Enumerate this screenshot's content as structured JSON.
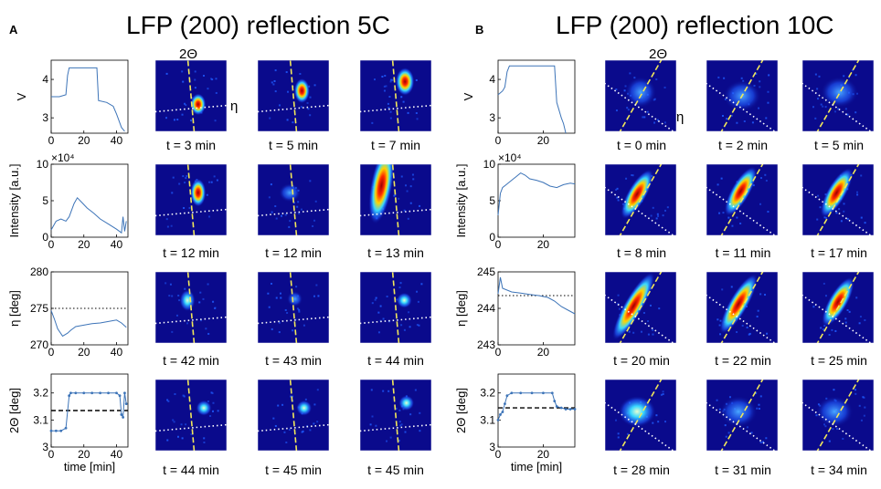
{
  "panels": [
    {
      "label": "A",
      "title": "LFP (200) reflection 5C",
      "top_annotations": {
        "two_theta": "2Θ",
        "eta": "η"
      },
      "captions": [
        [
          "t = 3 min",
          "t = 5 min",
          "t = 7 min"
        ],
        [
          "t = 12 min",
          "t = 12 min",
          "t = 13 min"
        ],
        [
          "t = 42 min",
          "t = 43 min",
          "t = 44 min"
        ],
        [
          "t = 44 min",
          "t = 45 min",
          "t = 45 min"
        ]
      ]
    },
    {
      "label": "B",
      "title": "LFP (200) reflection 10C",
      "top_annotations": {
        "two_theta": "2Θ",
        "eta": "η"
      },
      "captions": [
        [
          "t = 0 min",
          "t = 2 min",
          "t = 5 min"
        ],
        [
          "t = 8 min",
          "t = 11 min",
          "t = 17 min"
        ],
        [
          "t = 20 min",
          "t = 22 min",
          "t = 25 min"
        ],
        [
          "t = 28 min",
          "t = 31 min",
          "t = 34 min"
        ]
      ]
    }
  ],
  "colors": {
    "line": "#3d74b8",
    "heatmap_bg": "#0a0a8c",
    "heatmap_mid": "#3aa0ff",
    "heatmap_hot": "#9b0000",
    "guide_2theta": "#f2e85a",
    "guide_eta": "#ffffff"
  },
  "chart_data": [
    {
      "type": "line",
      "panel": "A",
      "ylabel": "V",
      "xlim": [
        0,
        47
      ],
      "ylim": [
        2.6,
        4.5
      ],
      "yticks": [
        "3",
        "4"
      ],
      "xticks": [
        "0",
        "20",
        "40"
      ],
      "series": [
        {
          "name": "voltage",
          "x": [
            0,
            5,
            9,
            10,
            11,
            28,
            29,
            34,
            38,
            40,
            43,
            45
          ],
          "y": [
            3.55,
            3.55,
            3.6,
            4.1,
            4.3,
            4.3,
            3.45,
            3.4,
            3.3,
            3.1,
            2.75,
            2.65
          ]
        }
      ]
    },
    {
      "type": "line",
      "panel": "A",
      "ylabel": "Intensity [a.u.]",
      "exponent_label": "×10⁴",
      "xlim": [
        0,
        47
      ],
      "ylim": [
        0,
        10
      ],
      "yticks": [
        "0",
        "5",
        "10"
      ],
      "xticks": [
        "0",
        "20",
        "40"
      ],
      "series": [
        {
          "name": "intensity",
          "x": [
            0,
            3,
            6,
            9,
            11,
            14,
            16,
            19,
            22,
            26,
            30,
            35,
            40,
            43,
            44,
            45,
            46
          ],
          "y": [
            1.0,
            2.2,
            2.5,
            2.2,
            2.8,
            4.6,
            5.4,
            4.7,
            4.0,
            3.3,
            2.5,
            1.8,
            1.1,
            0.6,
            2.8,
            0.8,
            2.2
          ]
        }
      ]
    },
    {
      "type": "line",
      "panel": "A",
      "ylabel": "η [deg]",
      "xlim": [
        0,
        47
      ],
      "ylim": [
        270,
        280
      ],
      "yticks": [
        "270",
        "275",
        "280"
      ],
      "xticks": [
        "0",
        "20",
        "40"
      ],
      "reference_line": 275,
      "series": [
        {
          "name": "eta",
          "x": [
            0,
            2,
            4,
            7,
            10,
            12,
            15,
            20,
            25,
            30,
            35,
            40,
            43,
            46
          ],
          "y": [
            274.7,
            273.5,
            272.2,
            271.2,
            271.6,
            272.0,
            272.5,
            272.7,
            272.9,
            273.0,
            273.2,
            273.4,
            273.0,
            272.4
          ]
        }
      ]
    },
    {
      "type": "scatter",
      "panel": "A",
      "ylabel": "2Θ [deg]",
      "xlabel": "time [min]",
      "xlim": [
        0,
        47
      ],
      "ylim": [
        3.0,
        3.27
      ],
      "yticks": [
        "3",
        "3.1",
        "3.2"
      ],
      "xticks": [
        "0",
        "20",
        "40"
      ],
      "reference_line": 3.135,
      "series": [
        {
          "name": "two_theta",
          "x": [
            0,
            3,
            6,
            9,
            11,
            12,
            15,
            20,
            25,
            30,
            35,
            40,
            42,
            43,
            44,
            45,
            46
          ],
          "y": [
            3.06,
            3.06,
            3.06,
            3.07,
            3.19,
            3.2,
            3.2,
            3.2,
            3.2,
            3.2,
            3.2,
            3.2,
            3.19,
            3.12,
            3.11,
            3.2,
            3.16
          ]
        }
      ]
    },
    {
      "type": "line",
      "panel": "B",
      "ylabel": "V",
      "xlim": [
        0,
        34
      ],
      "ylim": [
        2.6,
        4.5
      ],
      "yticks": [
        "3",
        "4"
      ],
      "xticks": [
        "0",
        "20"
      ],
      "series": [
        {
          "name": "voltage",
          "x": [
            0,
            1,
            2,
            3,
            4,
            5,
            25,
            26,
            27,
            28,
            29,
            30
          ],
          "y": [
            3.6,
            3.65,
            3.7,
            3.8,
            4.2,
            4.35,
            4.35,
            3.4,
            3.2,
            3.0,
            2.85,
            2.6
          ]
        }
      ]
    },
    {
      "type": "line",
      "panel": "B",
      "ylabel": "Intensity [a.u.]",
      "exponent_label": "×10⁴",
      "xlim": [
        0,
        34
      ],
      "ylim": [
        0,
        10
      ],
      "yticks": [
        "0",
        "5",
        "10"
      ],
      "xticks": [
        "0",
        "20"
      ],
      "series": [
        {
          "name": "intensity",
          "x": [
            0,
            1,
            2,
            4,
            6,
            8,
            10,
            12,
            14,
            17,
            20,
            23,
            26,
            29,
            32,
            34
          ],
          "y": [
            3.0,
            6.0,
            6.8,
            7.3,
            7.8,
            8.3,
            8.8,
            8.5,
            8.0,
            7.8,
            7.5,
            7.0,
            6.8,
            7.2,
            7.4,
            7.3
          ]
        }
      ]
    },
    {
      "type": "line",
      "panel": "B",
      "ylabel": "η [deg]",
      "xlim": [
        0,
        34
      ],
      "ylim": [
        243,
        245
      ],
      "yticks": [
        "243",
        "244",
        "245"
      ],
      "xticks": [
        "0",
        "20"
      ],
      "reference_line": 244.35,
      "series": [
        {
          "name": "eta",
          "x": [
            0,
            1,
            2,
            4,
            6,
            10,
            14,
            18,
            22,
            25,
            28,
            31,
            34
          ],
          "y": [
            244.4,
            244.85,
            244.55,
            244.5,
            244.45,
            244.42,
            244.38,
            244.35,
            244.3,
            244.2,
            244.05,
            243.95,
            243.85
          ]
        }
      ]
    },
    {
      "type": "scatter",
      "panel": "B",
      "ylabel": "2Θ [deg]",
      "xlabel": "time [min]",
      "xlim": [
        0,
        34
      ],
      "ylim": [
        3.0,
        3.27
      ],
      "yticks": [
        "3",
        "3.1",
        "3.2"
      ],
      "xticks": [
        "0",
        "20"
      ],
      "reference_line": 3.145,
      "series": [
        {
          "name": "two_theta",
          "x": [
            0,
            1,
            2,
            3,
            4,
            6,
            10,
            15,
            20,
            24,
            25,
            26,
            28,
            30,
            32,
            34
          ],
          "y": [
            3.1,
            3.12,
            3.13,
            3.16,
            3.19,
            3.2,
            3.2,
            3.2,
            3.2,
            3.2,
            3.17,
            3.15,
            3.145,
            3.14,
            3.14,
            3.14
          ]
        }
      ]
    },
    {
      "type": "heatmap",
      "panel": "A",
      "note": "diffraction spot intensity maps; [row][col] spots as [x, y, sigma_x, sigma_y, peak] in unit-square data coordinates",
      "spots": [
        [
          [
            [
              0.6,
              0.62,
              0.05,
              0.07,
              1.0
            ]
          ],
          [
            [
              0.62,
              0.43,
              0.05,
              0.08,
              0.95
            ]
          ],
          [
            [
              0.63,
              0.3,
              0.06,
              0.09,
              1.0
            ]
          ]
        ],
        [
          [
            [
              0.6,
              0.4,
              0.05,
              0.09,
              0.95
            ]
          ],
          [
            [
              0.45,
              0.4,
              0.07,
              0.06,
              0.25
            ]
          ],
          [
            [
              0.3,
              0.3,
              0.07,
              0.25,
              1.0
            ]
          ]
        ],
        [
          [
            [
              0.45,
              0.4,
              0.05,
              0.07,
              0.7
            ]
          ],
          [
            [
              0.52,
              0.38,
              0.05,
              0.05,
              0.4
            ]
          ],
          [
            [
              0.62,
              0.4,
              0.05,
              0.05,
              0.5
            ]
          ]
        ],
        [
          [
            [
              0.68,
              0.4,
              0.05,
              0.05,
              0.55
            ]
          ],
          [
            [
              0.65,
              0.4,
              0.05,
              0.05,
              0.55
            ]
          ],
          [
            [
              0.65,
              0.33,
              0.05,
              0.05,
              0.55
            ]
          ]
        ]
      ],
      "guides": {
        "two_theta_angle_deg": 95,
        "eta_angle_deg": 5
      }
    },
    {
      "type": "heatmap",
      "panel": "B",
      "note": "diffraction spot intensity maps; [row][col] spots as [x, y, sigma_x, sigma_y, peak] in unit-square data coordinates",
      "spots": [
        [
          [
            [
              0.5,
              0.45,
              0.1,
              0.1,
              0.35
            ]
          ],
          [
            [
              0.5,
              0.5,
              0.12,
              0.1,
              0.35
            ]
          ],
          [
            [
              0.52,
              0.45,
              0.12,
              0.1,
              0.4
            ]
          ]
        ],
        [
          [
            [
              0.45,
              0.42,
              0.06,
              0.18,
              1.0
            ]
          ],
          [
            [
              0.48,
              0.38,
              0.06,
              0.18,
              1.0
            ]
          ],
          [
            [
              0.48,
              0.4,
              0.06,
              0.18,
              1.0
            ]
          ]
        ],
        [
          [
            [
              0.4,
              0.48,
              0.06,
              0.25,
              1.0
            ]
          ],
          [
            [
              0.45,
              0.45,
              0.06,
              0.22,
              1.0
            ]
          ],
          [
            [
              0.5,
              0.42,
              0.06,
              0.18,
              1.0
            ]
          ]
        ],
        [
          [
            [
              0.45,
              0.45,
              0.12,
              0.1,
              0.45
            ]
          ],
          [
            [
              0.45,
              0.45,
              0.12,
              0.1,
              0.4
            ]
          ],
          [
            [
              0.45,
              0.45,
              0.12,
              0.1,
              0.35
            ]
          ]
        ]
      ],
      "guides": {
        "two_theta_angle_deg": 60,
        "eta_angle_deg": -35
      }
    }
  ]
}
